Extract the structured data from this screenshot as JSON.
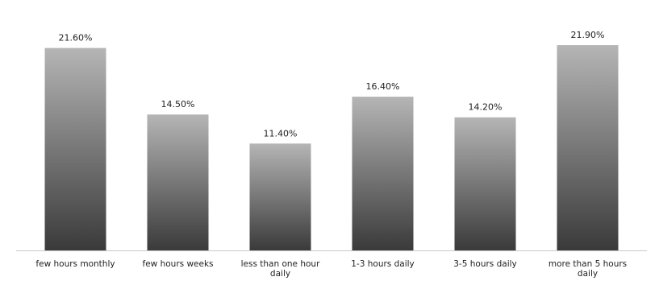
{
  "chart_data": {
    "type": "bar",
    "title": "",
    "xlabel": "",
    "ylabel": "",
    "ylim": [
      0,
      25
    ],
    "grid": false,
    "categories": [
      [
        "few hours monthly"
      ],
      [
        "few hours weeks"
      ],
      [
        "less than one hour",
        "daily"
      ],
      [
        "1-3 hours daily"
      ],
      [
        "3-5  hours daily"
      ],
      [
        "more than 5 hours",
        "daily"
      ]
    ],
    "values": [
      21.6,
      14.5,
      11.4,
      16.4,
      14.2,
      21.9
    ],
    "value_labels": [
      "21.60%",
      "14.50%",
      "11.40%",
      "16.40%",
      "14.20%",
      "21.90%"
    ],
    "bar_gradient": [
      "#b5b5b5",
      "#3a3a3a"
    ],
    "axis_color": "#c8c8c8"
  }
}
